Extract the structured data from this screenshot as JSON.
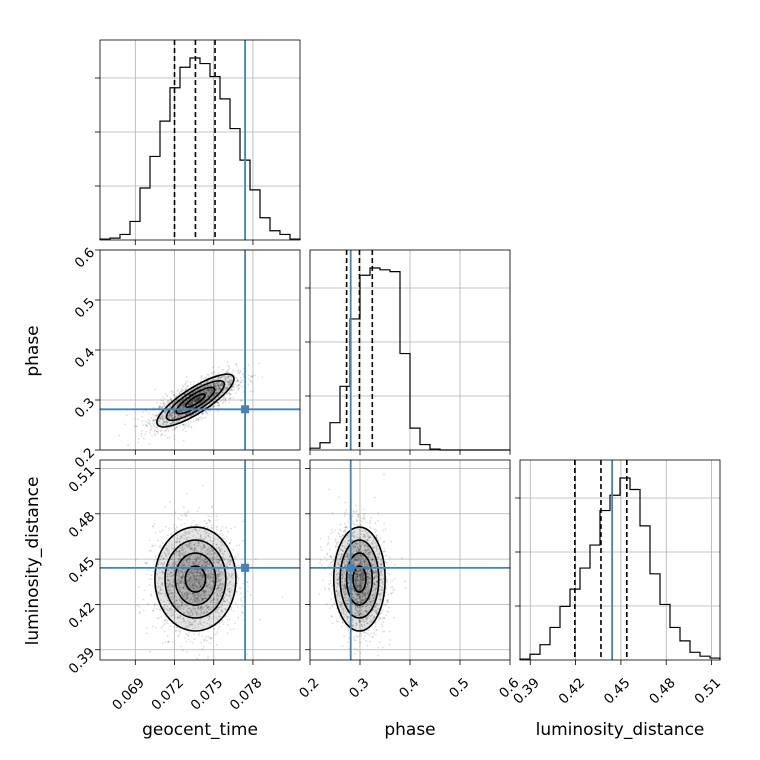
{
  "chart_data": {
    "type": "corner",
    "parameters": [
      "geocent_time",
      "phase",
      "luminosity_distance"
    ],
    "truths": {
      "geocent_time": 0.0774,
      "phase": 0.2814,
      "luminosity_distance": 0.4442
    },
    "quantiles": {
      "geocent_time": [
        0.072,
        0.0736,
        0.0751
      ],
      "phase": [
        0.2732,
        0.2989,
        0.3246
      ],
      "luminosity_distance": [
        0.4195,
        0.4368,
        0.4539
      ]
    },
    "ranges": {
      "geocent_time": [
        0.0663,
        0.0816
      ],
      "phase": [
        0.2,
        0.6
      ],
      "luminosity_distance": [
        0.3832,
        0.5156
      ]
    },
    "ticks": {
      "geocent_time": [
        0.069,
        0.072,
        0.075,
        0.078
      ],
      "phase": [
        0.2,
        0.3,
        0.4,
        0.5,
        0.6
      ],
      "luminosity_distance": [
        0.39,
        0.42,
        0.45,
        0.48,
        0.51
      ]
    },
    "tick_labels": {
      "geocent_time": [
        "0.069",
        "0.072",
        "0.075",
        "0.078"
      ],
      "phase": [
        "0.2",
        "0.3",
        "0.4",
        "0.5",
        "0.6"
      ],
      "luminosity_distance": [
        "0.39",
        "0.42",
        "0.45",
        "0.48",
        "0.51"
      ]
    },
    "histograms": {
      "geocent_time": [
        0.005,
        0.01,
        0.03,
        0.1,
        0.28,
        0.45,
        0.64,
        0.82,
        0.93,
        0.98,
        0.95,
        0.88,
        0.76,
        0.6,
        0.43,
        0.27,
        0.12,
        0.05,
        0.03,
        0.005
      ],
      "phase": [
        0.01,
        0.04,
        0.15,
        0.35,
        0.72,
        0.96,
        1.0,
        0.99,
        0.98,
        0.53,
        0.12,
        0.03,
        0.005,
        0,
        0,
        0,
        0,
        0,
        0,
        0
      ],
      "luminosity_distance": [
        0.005,
        0.03,
        0.08,
        0.17,
        0.28,
        0.37,
        0.48,
        0.6,
        0.78,
        0.86,
        0.95,
        0.89,
        0.7,
        0.45,
        0.29,
        0.17,
        0.1,
        0.04,
        0.02,
        0.01
      ]
    },
    "grid": true,
    "legend": "none"
  }
}
